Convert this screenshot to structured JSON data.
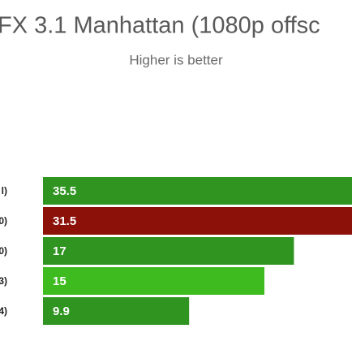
{
  "chart_data": {
    "type": "bar",
    "title": "FX 3.1 Manhattan (1080p offsc",
    "subtitle": "Higher is better",
    "categories": [
      "l)",
      "0)",
      "0)",
      "3)",
      "4)"
    ],
    "values": [
      35.5,
      31.5,
      17,
      15,
      9.9
    ],
    "colors": [
      "#2f9420",
      "#8c1109",
      "#2f9420",
      "#3dbb1f",
      "#2f9420"
    ]
  }
}
